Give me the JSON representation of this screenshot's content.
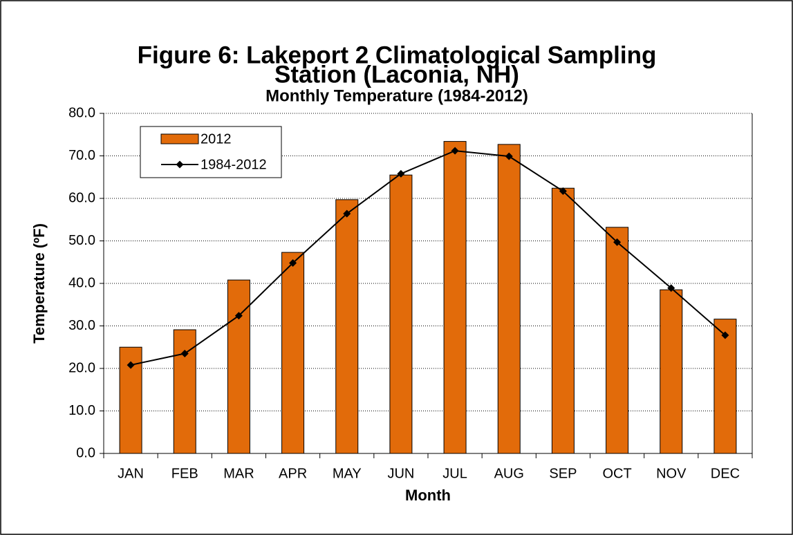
{
  "chart_data": {
    "type": "bar_line",
    "title": [
      "Figure 6: Lakeport 2 Climatological Sampling",
      "Station (Laconia, NH)"
    ],
    "subtitle": "Monthly Temperature (1984-2012)",
    "x_label": "Month",
    "y_label": "Temperature (ºF)",
    "categories": [
      "JAN",
      "FEB",
      "MAR",
      "APR",
      "MAY",
      "JUN",
      "JUL",
      "AUG",
      "SEP",
      "OCT",
      "NOV",
      "DEC"
    ],
    "series": [
      {
        "name": "2012",
        "type": "bar",
        "color": "#e26b0a",
        "values": [
          25.0,
          29.1,
          40.8,
          47.3,
          59.7,
          65.5,
          73.4,
          72.7,
          62.4,
          53.2,
          38.5,
          31.6
        ]
      },
      {
        "name": "1984-2012",
        "type": "line",
        "color": "#000000",
        "values": [
          20.8,
          23.5,
          32.4,
          44.8,
          56.4,
          65.8,
          71.2,
          69.9,
          61.7,
          49.7,
          38.9,
          27.8
        ]
      }
    ],
    "ylim": [
      0,
      80
    ],
    "yticks": [
      {
        "value": 0,
        "label": "0.0"
      },
      {
        "value": 10,
        "label": "10.0"
      },
      {
        "value": 20,
        "label": "20.0"
      },
      {
        "value": 30,
        "label": "30.0"
      },
      {
        "value": 40,
        "label": "40.0"
      },
      {
        "value": 50,
        "label": "50.0"
      },
      {
        "value": 60,
        "label": "60.0"
      },
      {
        "value": 70,
        "label": "70.0"
      },
      {
        "value": 80,
        "label": "80.0"
      }
    ],
    "grid": true,
    "legend": "upper-left"
  }
}
